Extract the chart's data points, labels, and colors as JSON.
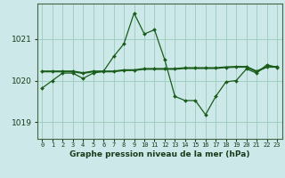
{
  "background_color": "#cce8e8",
  "grid_color": "#99ccbb",
  "line_color": "#1a5c1a",
  "xlabel": "Graphe pression niveau de la mer (hPa)",
  "ylim": [
    1018.6,
    1021.85
  ],
  "yticks": [
    1019,
    1020,
    1021
  ],
  "hours": [
    0,
    1,
    2,
    3,
    4,
    5,
    6,
    7,
    8,
    9,
    10,
    11,
    12,
    13,
    14,
    15,
    16,
    17,
    18,
    19,
    20,
    21,
    22,
    23
  ],
  "line1": [
    1019.82,
    1020.0,
    1020.18,
    1020.18,
    1020.05,
    1020.18,
    1020.22,
    1020.58,
    1020.88,
    1021.62,
    1021.12,
    1021.22,
    1020.5,
    1019.62,
    1019.52,
    1019.52,
    1019.18,
    1019.62,
    1019.97,
    1020.0,
    1020.28,
    1020.18,
    1020.38,
    1020.32
  ],
  "line2": [
    1020.22,
    1020.22,
    1020.22,
    1020.22,
    1020.18,
    1020.22,
    1020.22,
    1020.22,
    1020.25,
    1020.25,
    1020.28,
    1020.28,
    1020.28,
    1020.28,
    1020.3,
    1020.3,
    1020.3,
    1020.3,
    1020.32,
    1020.33,
    1020.33,
    1020.22,
    1020.33,
    1020.33
  ],
  "marker": "D",
  "markersize": 2.0,
  "linewidth1": 0.9,
  "linewidth2": 1.5
}
